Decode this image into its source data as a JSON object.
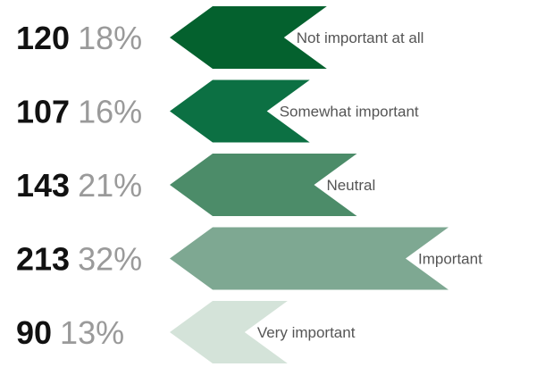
{
  "chart_data": {
    "type": "bar",
    "orientation": "horizontal",
    "title": "",
    "categories": [
      "Not important at all",
      "Somewhat important",
      "Neutral",
      "Important",
      "Very important"
    ],
    "values": [
      120,
      107,
      143,
      213,
      90
    ],
    "percent_labels": [
      "18%",
      "16%",
      "21%",
      "32%",
      "13%"
    ],
    "colors": [
      "#04612e",
      "#0c7043",
      "#4c8c69",
      "#7ea892",
      "#d4e3d9"
    ],
    "xlim": [
      0,
      213
    ],
    "grid": false,
    "legend": "none"
  }
}
